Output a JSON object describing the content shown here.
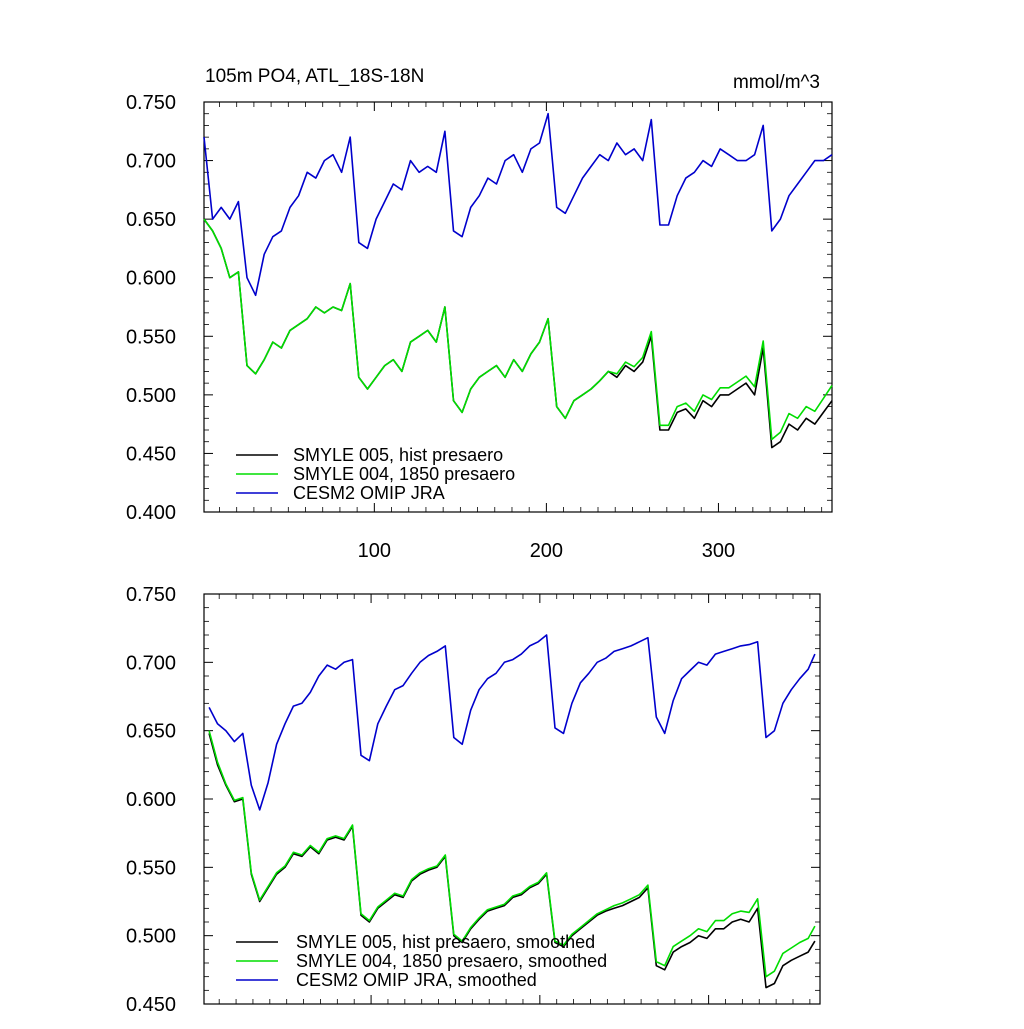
{
  "chart_data": [
    {
      "type": "line",
      "title": "105m PO4, ATL_18S-18N",
      "units": "mmol/m^3",
      "xlim": [
        1,
        366
      ],
      "ylim": [
        0.4,
        0.75
      ],
      "x_ticks": [
        100,
        200,
        300
      ],
      "x_tick_labels": [
        "100",
        "200",
        "300"
      ],
      "y_ticks": [
        0.4,
        0.45,
        0.5,
        0.55,
        0.6,
        0.65,
        0.7,
        0.75
      ],
      "y_tick_labels": [
        "0.400",
        "0.450",
        "0.500",
        "0.550",
        "0.600",
        "0.650",
        "0.700",
        "0.750"
      ],
      "legend_position": "bottom-left",
      "grid": false,
      "x": [
        1,
        6,
        11,
        16,
        21,
        26,
        31,
        36,
        41,
        46,
        51,
        56,
        61,
        66,
        71,
        76,
        81,
        86,
        91,
        96,
        101,
        106,
        111,
        116,
        121,
        126,
        131,
        136,
        141,
        146,
        151,
        156,
        161,
        166,
        171,
        176,
        181,
        186,
        191,
        196,
        201,
        206,
        211,
        216,
        221,
        226,
        231,
        236,
        241,
        246,
        251,
        256,
        261,
        266,
        271,
        276,
        281,
        286,
        291,
        296,
        301,
        306,
        311,
        316,
        321,
        326,
        331,
        336,
        341,
        346,
        351,
        356,
        361,
        366
      ],
      "series": [
        {
          "name": "SMYLE 005, hist presaero",
          "color": "#000000",
          "values": [
            0.65,
            0.64,
            0.625,
            0.6,
            0.605,
            0.525,
            0.518,
            0.53,
            0.545,
            0.54,
            0.555,
            0.56,
            0.565,
            0.575,
            0.57,
            0.575,
            0.572,
            0.595,
            0.515,
            0.505,
            0.515,
            0.525,
            0.53,
            0.52,
            0.545,
            0.55,
            0.555,
            0.545,
            0.575,
            0.495,
            0.485,
            0.505,
            0.515,
            0.52,
            0.525,
            0.515,
            0.53,
            0.52,
            0.535,
            0.545,
            0.565,
            0.49,
            0.48,
            0.495,
            0.5,
            0.505,
            0.512,
            0.52,
            0.515,
            0.525,
            0.52,
            0.528,
            0.55,
            0.47,
            0.47,
            0.485,
            0.488,
            0.48,
            0.495,
            0.49,
            0.5,
            0.5,
            0.505,
            0.51,
            0.5,
            0.54,
            0.455,
            0.46,
            0.475,
            0.47,
            0.48,
            0.475,
            0.485,
            0.495
          ]
        },
        {
          "name": "SMYLE 004, 1850 presaero",
          "color": "#00dd00",
          "values": [
            0.65,
            0.64,
            0.625,
            0.6,
            0.605,
            0.525,
            0.518,
            0.53,
            0.545,
            0.54,
            0.555,
            0.56,
            0.565,
            0.575,
            0.57,
            0.575,
            0.572,
            0.595,
            0.515,
            0.505,
            0.515,
            0.525,
            0.53,
            0.52,
            0.545,
            0.55,
            0.555,
            0.545,
            0.575,
            0.495,
            0.485,
            0.505,
            0.515,
            0.52,
            0.525,
            0.515,
            0.53,
            0.52,
            0.535,
            0.545,
            0.565,
            0.49,
            0.48,
            0.495,
            0.5,
            0.505,
            0.512,
            0.52,
            0.518,
            0.528,
            0.524,
            0.532,
            0.554,
            0.474,
            0.474,
            0.49,
            0.493,
            0.486,
            0.5,
            0.496,
            0.506,
            0.506,
            0.511,
            0.516,
            0.507,
            0.546,
            0.462,
            0.468,
            0.484,
            0.48,
            0.49,
            0.486,
            0.497,
            0.508
          ]
        },
        {
          "name": "CESM2 OMIP JRA",
          "color": "#0000cc",
          "values": [
            0.72,
            0.65,
            0.66,
            0.65,
            0.665,
            0.6,
            0.585,
            0.62,
            0.635,
            0.64,
            0.66,
            0.67,
            0.69,
            0.685,
            0.7,
            0.705,
            0.69,
            0.72,
            0.63,
            0.625,
            0.65,
            0.665,
            0.68,
            0.675,
            0.7,
            0.69,
            0.695,
            0.69,
            0.725,
            0.64,
            0.635,
            0.66,
            0.67,
            0.685,
            0.68,
            0.7,
            0.705,
            0.69,
            0.71,
            0.715,
            0.74,
            0.66,
            0.655,
            0.67,
            0.685,
            0.695,
            0.705,
            0.7,
            0.715,
            0.705,
            0.71,
            0.7,
            0.735,
            0.645,
            0.645,
            0.67,
            0.685,
            0.69,
            0.7,
            0.695,
            0.71,
            0.705,
            0.7,
            0.7,
            0.705,
            0.73,
            0.64,
            0.65,
            0.67,
            0.68,
            0.69,
            0.7,
            0.7,
            0.705
          ]
        }
      ]
    },
    {
      "type": "line",
      "xlim": [
        1,
        366
      ],
      "ylim": [
        0.45,
        0.75
      ],
      "x_ticks": [
        100,
        200,
        300
      ],
      "y_ticks": [
        0.45,
        0.5,
        0.55,
        0.6,
        0.65,
        0.7,
        0.75
      ],
      "y_tick_labels": [
        "0.450",
        "0.500",
        "0.550",
        "0.600",
        "0.650",
        "0.700",
        "0.750"
      ],
      "legend_position": "bottom-left",
      "grid": false,
      "x": [
        4,
        9,
        14,
        19,
        24,
        29,
        34,
        39,
        44,
        49,
        54,
        59,
        64,
        69,
        74,
        79,
        84,
        89,
        94,
        99,
        104,
        109,
        114,
        119,
        124,
        129,
        134,
        139,
        144,
        149,
        154,
        159,
        164,
        169,
        174,
        179,
        184,
        189,
        194,
        199,
        204,
        209,
        214,
        219,
        224,
        229,
        234,
        239,
        244,
        249,
        254,
        259,
        264,
        269,
        274,
        279,
        284,
        289,
        294,
        299,
        304,
        309,
        314,
        319,
        324,
        329,
        334,
        339,
        344,
        349,
        354,
        359,
        363
      ],
      "series": [
        {
          "name": "SMYLE 005, hist presaero, smoothed",
          "color": "#000000",
          "values": [
            0.648,
            0.625,
            0.61,
            0.598,
            0.6,
            0.545,
            0.525,
            0.535,
            0.545,
            0.55,
            0.56,
            0.558,
            0.565,
            0.56,
            0.57,
            0.572,
            0.57,
            0.58,
            0.515,
            0.51,
            0.52,
            0.525,
            0.53,
            0.528,
            0.54,
            0.545,
            0.548,
            0.55,
            0.558,
            0.5,
            0.495,
            0.505,
            0.512,
            0.518,
            0.52,
            0.522,
            0.528,
            0.53,
            0.535,
            0.538,
            0.545,
            0.495,
            0.492,
            0.5,
            0.505,
            0.51,
            0.515,
            0.518,
            0.52,
            0.522,
            0.525,
            0.528,
            0.535,
            0.478,
            0.475,
            0.488,
            0.492,
            0.495,
            0.5,
            0.498,
            0.505,
            0.505,
            0.51,
            0.512,
            0.51,
            0.52,
            0.462,
            0.465,
            0.478,
            0.482,
            0.485,
            0.488,
            0.496
          ]
        },
        {
          "name": "SMYLE 004, 1850 presaero, smoothed",
          "color": "#00dd00",
          "values": [
            0.65,
            0.627,
            0.611,
            0.599,
            0.601,
            0.546,
            0.526,
            0.536,
            0.546,
            0.551,
            0.561,
            0.559,
            0.566,
            0.561,
            0.571,
            0.573,
            0.571,
            0.581,
            0.516,
            0.511,
            0.521,
            0.526,
            0.531,
            0.529,
            0.541,
            0.546,
            0.549,
            0.551,
            0.559,
            0.501,
            0.496,
            0.506,
            0.513,
            0.519,
            0.521,
            0.523,
            0.529,
            0.531,
            0.536,
            0.539,
            0.546,
            0.496,
            0.493,
            0.501,
            0.506,
            0.511,
            0.516,
            0.519,
            0.522,
            0.524,
            0.527,
            0.53,
            0.537,
            0.481,
            0.478,
            0.492,
            0.496,
            0.5,
            0.505,
            0.503,
            0.511,
            0.511,
            0.516,
            0.518,
            0.517,
            0.527,
            0.47,
            0.474,
            0.487,
            0.491,
            0.495,
            0.498,
            0.507
          ]
        },
        {
          "name": "CESM2 OMIP JRA, smoothed",
          "color": "#0000cc",
          "values": [
            0.667,
            0.655,
            0.65,
            0.642,
            0.648,
            0.61,
            0.592,
            0.612,
            0.64,
            0.655,
            0.668,
            0.67,
            0.678,
            0.69,
            0.698,
            0.695,
            0.7,
            0.702,
            0.632,
            0.628,
            0.655,
            0.668,
            0.68,
            0.683,
            0.692,
            0.7,
            0.705,
            0.708,
            0.712,
            0.645,
            0.64,
            0.665,
            0.68,
            0.688,
            0.692,
            0.7,
            0.702,
            0.706,
            0.712,
            0.715,
            0.72,
            0.652,
            0.648,
            0.67,
            0.685,
            0.692,
            0.7,
            0.703,
            0.708,
            0.71,
            0.712,
            0.715,
            0.718,
            0.66,
            0.648,
            0.672,
            0.688,
            0.694,
            0.7,
            0.698,
            0.706,
            0.708,
            0.71,
            0.712,
            0.713,
            0.715,
            0.645,
            0.65,
            0.67,
            0.68,
            0.688,
            0.695,
            0.706
          ]
        }
      ]
    }
  ]
}
